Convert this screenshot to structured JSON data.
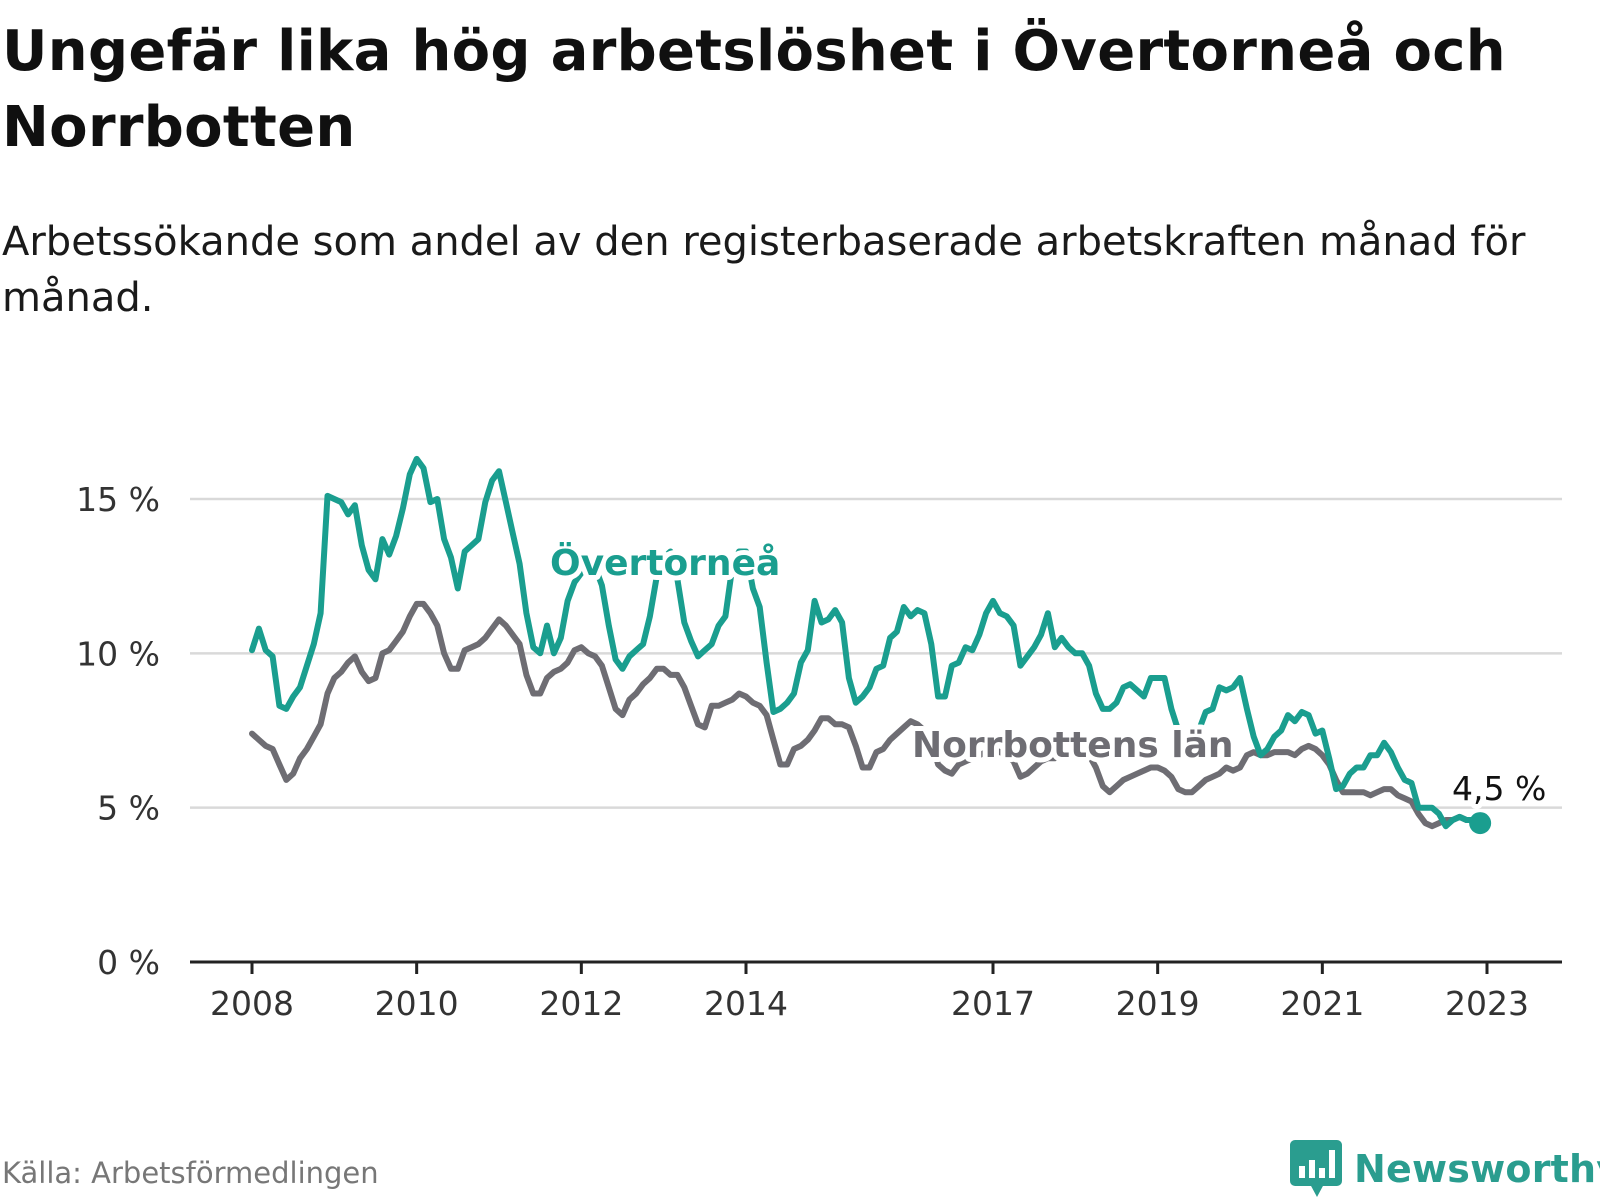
{
  "title": "Ungefär lika hög arbetslöshet i Övertorneå och Norrbotten",
  "subtitle": "Arbetssökande som andel av den registerbaserade arbetskraften månad för månad.",
  "source": "Källa: Arbetsförmedlingen",
  "brand": "Newsworthy",
  "colors": {
    "overtornea": "#1a9e8f",
    "norrbotten": "#6e6d73",
    "grid": "#d9d9d9",
    "axis": "#222222",
    "brand": "#2a9d8f"
  },
  "icons": {
    "brand_logo": "bar-chart-speech-bubble-icon"
  },
  "chart_data": {
    "type": "line",
    "title": "Ungefär lika hög arbetslöshet i Övertorneå och Norrbotten",
    "xlabel": "",
    "ylabel": "",
    "x_start": "2008-01",
    "x_end": "2023-04",
    "xlim": [
      2008.0,
      2023.5
    ],
    "ylim": [
      0,
      15.5
    ],
    "yticks": [
      0,
      5,
      10,
      15
    ],
    "ytick_labels": [
      "0 %",
      "5 %",
      "10 %",
      "15 %"
    ],
    "xticks": [
      2008,
      2010,
      2012,
      2014,
      2017,
      2019,
      2021,
      2023
    ],
    "xtick_labels": [
      "2008",
      "2010",
      "2012",
      "2014",
      "2017",
      "2019",
      "2021",
      "2023"
    ],
    "grid": true,
    "series": [
      {
        "name": "Övertorneå",
        "label": "Övertorneå",
        "values": [
          10.1,
          10.8,
          10.1,
          9.9,
          8.3,
          8.2,
          8.6,
          8.9,
          9.6,
          10.3,
          11.3,
          15.1,
          15.0,
          14.9,
          14.5,
          14.8,
          13.5,
          12.7,
          12.4,
          13.7,
          13.2,
          13.8,
          14.7,
          15.8,
          16.3,
          16.0,
          14.9,
          15.0,
          13.7,
          13.1,
          12.1,
          13.3,
          13.5,
          13.7,
          14.9,
          15.6,
          15.9,
          14.9,
          13.9,
          12.9,
          11.3,
          10.2,
          10.0,
          10.9,
          10.0,
          10.5,
          11.7,
          12.3,
          12.6,
          13.0,
          12.8,
          12.2,
          10.9,
          9.8,
          9.5,
          9.9,
          10.1,
          10.3,
          11.2,
          12.5,
          13.1,
          13.3,
          12.4,
          11.0,
          10.4,
          9.9,
          10.1,
          10.3,
          10.9,
          11.2,
          12.8,
          13.3,
          13.3,
          12.1,
          11.5,
          9.7,
          8.1,
          8.2,
          8.4,
          8.7,
          9.7,
          10.1,
          11.7,
          11.0,
          11.1,
          11.4,
          11.0,
          9.2,
          8.4,
          8.6,
          8.9,
          9.5,
          9.6,
          10.5,
          10.7,
          11.5,
          11.2,
          11.4,
          11.3,
          10.3,
          8.6,
          8.6,
          9.6,
          9.7,
          10.2,
          10.1,
          10.6,
          11.3,
          11.7,
          11.3,
          11.2,
          10.9,
          9.6,
          9.9,
          10.2,
          10.6,
          11.3,
          10.2,
          10.5,
          10.2,
          10.0,
          10.0,
          9.6,
          8.7,
          8.2,
          8.2,
          8.4,
          8.9,
          9.0,
          8.8,
          8.6,
          9.2,
          9.2,
          9.2,
          8.2,
          7.5,
          7.2,
          7.1,
          7.5,
          8.1,
          8.2,
          8.9,
          8.8,
          8.9,
          9.2,
          8.2,
          7.3,
          6.7,
          6.9,
          7.3,
          7.5,
          8.0,
          7.8,
          8.1,
          8.0,
          7.4,
          7.5,
          6.6,
          5.6,
          5.7,
          6.1,
          6.3,
          6.3,
          6.7,
          6.7,
          7.1,
          6.8,
          6.3,
          5.9,
          5.8,
          5.0,
          5.0,
          5.0,
          4.8,
          4.4,
          4.6,
          4.7,
          4.6,
          4.6,
          4.5
        ]
      },
      {
        "name": "Norrbottens län",
        "label": "Norrbottens län",
        "values": [
          7.4,
          7.2,
          7.0,
          6.9,
          6.4,
          5.9,
          6.1,
          6.6,
          6.9,
          7.3,
          7.7,
          8.7,
          9.2,
          9.4,
          9.7,
          9.9,
          9.4,
          9.1,
          9.2,
          10.0,
          10.1,
          10.4,
          10.7,
          11.2,
          11.6,
          11.6,
          11.3,
          10.9,
          10.0,
          9.5,
          9.5,
          10.1,
          10.2,
          10.3,
          10.5,
          10.8,
          11.1,
          10.9,
          10.6,
          10.3,
          9.3,
          8.7,
          8.7,
          9.2,
          9.4,
          9.5,
          9.7,
          10.1,
          10.2,
          10.0,
          9.9,
          9.6,
          8.9,
          8.2,
          8.0,
          8.5,
          8.7,
          9.0,
          9.2,
          9.5,
          9.5,
          9.3,
          9.3,
          8.9,
          8.3,
          7.7,
          7.6,
          8.3,
          8.3,
          8.4,
          8.5,
          8.7,
          8.6,
          8.4,
          8.3,
          8.0,
          7.2,
          6.4,
          6.4,
          6.9,
          7.0,
          7.2,
          7.5,
          7.9,
          7.9,
          7.7,
          7.7,
          7.6,
          7.0,
          6.3,
          6.3,
          6.8,
          6.9,
          7.2,
          7.4,
          7.6,
          7.8,
          7.7,
          7.5,
          7.2,
          6.4,
          6.2,
          6.1,
          6.4,
          6.5,
          6.6,
          6.7,
          6.8,
          6.9,
          6.8,
          6.7,
          6.5,
          6.0,
          6.1,
          6.3,
          6.5,
          6.6,
          6.6,
          6.7,
          6.8,
          6.9,
          6.9,
          6.7,
          6.3,
          5.7,
          5.5,
          5.7,
          5.9,
          6.0,
          6.1,
          6.2,
          6.3,
          6.3,
          6.2,
          6.0,
          5.6,
          5.5,
          5.5,
          5.7,
          5.9,
          6.0,
          6.1,
          6.3,
          6.2,
          6.3,
          6.7,
          6.8,
          6.7,
          6.7,
          6.8,
          6.8,
          6.8,
          6.7,
          6.9,
          7.0,
          6.9,
          6.7,
          6.4,
          5.9,
          5.5,
          5.5,
          5.5,
          5.5,
          5.4,
          5.5,
          5.6,
          5.6,
          5.4,
          5.3,
          5.2,
          4.8,
          4.5,
          4.4,
          4.5,
          4.6,
          4.6,
          4.7,
          4.6,
          4.6,
          4.5
        ]
      }
    ],
    "annotations": [
      {
        "series": "Övertorneå",
        "text": "4,5 %",
        "value": 4.5,
        "at": "2023-04"
      }
    ]
  }
}
